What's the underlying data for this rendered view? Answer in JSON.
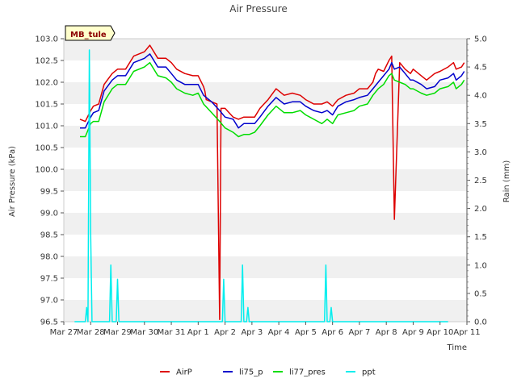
{
  "chart_data": {
    "type": "line",
    "title": "Air Pressure",
    "site_label": "MB_tule",
    "xlabel": "Time",
    "ylabel": "Air Pressure (kPa)",
    "y2label": "Rain (mm)",
    "xlim": [
      0,
      15
    ],
    "ylim": [
      96.5,
      103.0
    ],
    "y2lim": [
      0.0,
      5.0
    ],
    "x_ticks": [
      0,
      1,
      2,
      3,
      4,
      5,
      6,
      7,
      8,
      9,
      10,
      11,
      12,
      13,
      14,
      15
    ],
    "x_tick_labels": [
      "Mar 27",
      "Mar 28",
      "Mar 29",
      "Mar 30",
      "Mar 31",
      "Apr 1",
      "Apr 2",
      "Apr 3",
      "Apr 4",
      "Apr 5",
      "Apr 6",
      "Apr 7",
      "Apr 8",
      "Apr 9",
      "Apr 10",
      "Apr 11"
    ],
    "y_ticks": [
      96.5,
      97.0,
      97.5,
      98.0,
      98.5,
      99.0,
      99.5,
      100.0,
      100.5,
      101.0,
      101.5,
      102.0,
      102.5,
      103.0
    ],
    "y_tick_labels": [
      "96.5",
      "97.0",
      "97.5",
      "98.0",
      "98.5",
      "99.0",
      "99.5",
      "100.0",
      "100.5",
      "101.0",
      "101.5",
      "102.0",
      "102.5",
      "103.0"
    ],
    "y2_ticks": [
      0.0,
      0.5,
      1.0,
      1.5,
      2.0,
      2.5,
      3.0,
      3.5,
      4.0,
      4.5,
      5.0
    ],
    "y2_tick_labels": [
      "0.0",
      "0.5",
      "1.0",
      "1.5",
      "2.0",
      "2.5",
      "3.0",
      "3.5",
      "4.0",
      "4.5",
      "5.0"
    ],
    "legend_position": "bottom-center",
    "grid": "horizontal bands",
    "series": [
      {
        "name": "AirP",
        "color": "#dd0000",
        "axis": "left",
        "x": [
          0.6,
          0.8,
          1.0,
          1.1,
          1.3,
          1.5,
          1.8,
          2.0,
          2.3,
          2.6,
          3.0,
          3.2,
          3.5,
          3.8,
          4.0,
          4.2,
          4.5,
          4.8,
          5.0,
          5.2,
          5.25,
          5.3,
          5.5,
          5.7,
          5.8,
          5.85,
          5.9,
          6.0,
          6.3,
          6.5,
          6.7,
          6.9,
          7.1,
          7.3,
          7.6,
          7.9,
          8.2,
          8.5,
          8.8,
          9.0,
          9.3,
          9.6,
          9.8,
          10.0,
          10.2,
          10.5,
          10.8,
          11.0,
          11.3,
          11.5,
          11.6,
          11.7,
          11.9,
          12.1,
          12.2,
          12.3,
          12.5,
          12.7,
          12.9,
          13.0,
          13.3,
          13.5,
          13.8,
          14.0,
          14.3,
          14.5,
          14.6,
          14.8,
          14.9
        ],
        "values": [
          101.15,
          101.1,
          101.35,
          101.45,
          101.5,
          101.95,
          102.2,
          102.3,
          102.3,
          102.6,
          102.7,
          102.85,
          102.55,
          102.55,
          102.45,
          102.3,
          102.2,
          102.15,
          102.15,
          101.9,
          101.8,
          101.6,
          101.55,
          101.5,
          96.55,
          101.4,
          101.4,
          101.4,
          101.2,
          101.15,
          101.2,
          101.2,
          101.2,
          101.4,
          101.6,
          101.85,
          101.7,
          101.75,
          101.7,
          101.6,
          101.5,
          101.5,
          101.55,
          101.45,
          101.6,
          101.7,
          101.75,
          101.85,
          101.85,
          102.0,
          102.2,
          102.3,
          102.25,
          102.5,
          102.6,
          98.85,
          102.45,
          102.3,
          102.2,
          102.3,
          102.15,
          102.05,
          102.2,
          102.25,
          102.35,
          102.45,
          102.3,
          102.35,
          102.45
        ]
      },
      {
        "name": "li75_p",
        "color": "#0000cc",
        "axis": "left",
        "x": [
          0.6,
          0.8,
          1.0,
          1.1,
          1.3,
          1.5,
          1.8,
          2.0,
          2.3,
          2.6,
          3.0,
          3.2,
          3.5,
          3.8,
          4.0,
          4.2,
          4.5,
          4.8,
          5.0,
          5.2,
          5.5,
          5.8,
          6.0,
          6.3,
          6.5,
          6.7,
          6.9,
          7.1,
          7.3,
          7.6,
          7.9,
          8.2,
          8.5,
          8.8,
          9.0,
          9.3,
          9.6,
          9.8,
          10.0,
          10.2,
          10.5,
          10.8,
          11.0,
          11.3,
          11.5,
          11.7,
          11.9,
          12.1,
          12.2,
          12.3,
          12.5,
          12.7,
          12.9,
          13.0,
          13.3,
          13.5,
          13.8,
          14.0,
          14.3,
          14.5,
          14.6,
          14.8,
          14.9
        ],
        "values": [
          100.95,
          100.95,
          101.2,
          101.3,
          101.35,
          101.8,
          102.05,
          102.15,
          102.15,
          102.45,
          102.55,
          102.65,
          102.35,
          102.35,
          102.2,
          102.05,
          101.95,
          101.95,
          101.95,
          101.7,
          101.55,
          101.35,
          101.2,
          101.15,
          100.95,
          101.05,
          101.05,
          101.05,
          101.2,
          101.45,
          101.65,
          101.5,
          101.55,
          101.55,
          101.45,
          101.35,
          101.3,
          101.35,
          101.25,
          101.45,
          101.55,
          101.6,
          101.65,
          101.7,
          101.85,
          102.0,
          102.15,
          102.3,
          102.45,
          102.3,
          102.35,
          102.2,
          102.05,
          102.05,
          101.95,
          101.85,
          101.9,
          102.05,
          102.1,
          102.2,
          102.05,
          102.15,
          102.25
        ]
      },
      {
        "name": "li77_pres",
        "color": "#00dd00",
        "axis": "left",
        "x": [
          0.6,
          0.8,
          1.0,
          1.1,
          1.3,
          1.5,
          1.8,
          2.0,
          2.3,
          2.6,
          3.0,
          3.2,
          3.5,
          3.8,
          4.0,
          4.2,
          4.5,
          4.8,
          5.0,
          5.2,
          5.5,
          5.8,
          6.0,
          6.3,
          6.5,
          6.7,
          6.9,
          7.1,
          7.3,
          7.6,
          7.9,
          8.2,
          8.5,
          8.8,
          9.0,
          9.3,
          9.6,
          9.8,
          10.0,
          10.2,
          10.5,
          10.8,
          11.0,
          11.3,
          11.5,
          11.7,
          11.9,
          12.1,
          12.2,
          12.3,
          12.5,
          12.7,
          12.9,
          13.0,
          13.3,
          13.5,
          13.8,
          14.0,
          14.3,
          14.5,
          14.6,
          14.8,
          14.9
        ],
        "values": [
          100.75,
          100.75,
          101.05,
          101.1,
          101.1,
          101.55,
          101.85,
          101.95,
          101.95,
          102.25,
          102.35,
          102.45,
          102.15,
          102.1,
          102.0,
          101.85,
          101.75,
          101.7,
          101.75,
          101.5,
          101.3,
          101.1,
          100.95,
          100.85,
          100.75,
          100.8,
          100.8,
          100.85,
          101.0,
          101.25,
          101.45,
          101.3,
          101.3,
          101.35,
          101.25,
          101.15,
          101.05,
          101.15,
          101.05,
          101.25,
          101.3,
          101.35,
          101.45,
          101.5,
          101.7,
          101.85,
          101.95,
          102.15,
          102.2,
          102.05,
          102.0,
          101.95,
          101.85,
          101.85,
          101.75,
          101.7,
          101.75,
          101.85,
          101.9,
          102.0,
          101.85,
          101.95,
          102.05
        ]
      },
      {
        "name": "ppt",
        "color": "#00eeee",
        "axis": "right",
        "x": [
          0.4,
          0.8,
          0.85,
          0.9,
          0.95,
          1.0,
          1.05,
          1.1,
          1.7,
          1.75,
          1.8,
          1.95,
          2.0,
          2.05,
          2.1,
          5.9,
          5.95,
          6.0,
          6.6,
          6.65,
          6.7,
          6.8,
          6.85,
          6.9,
          9.7,
          9.75,
          9.8,
          9.85,
          9.9,
          9.95,
          10.0,
          10.05,
          14.3
        ],
        "values": [
          0.0,
          0.0,
          0.25,
          0.0,
          4.8,
          1.5,
          0.0,
          0.0,
          0.0,
          1.0,
          0.0,
          0.0,
          0.75,
          0.0,
          0.0,
          0.0,
          0.75,
          0.0,
          0.0,
          1.0,
          0.0,
          0.0,
          0.25,
          0.0,
          0.0,
          1.0,
          0.0,
          0.0,
          0.0,
          0.25,
          0.0,
          0.0,
          0.0
        ]
      }
    ]
  }
}
